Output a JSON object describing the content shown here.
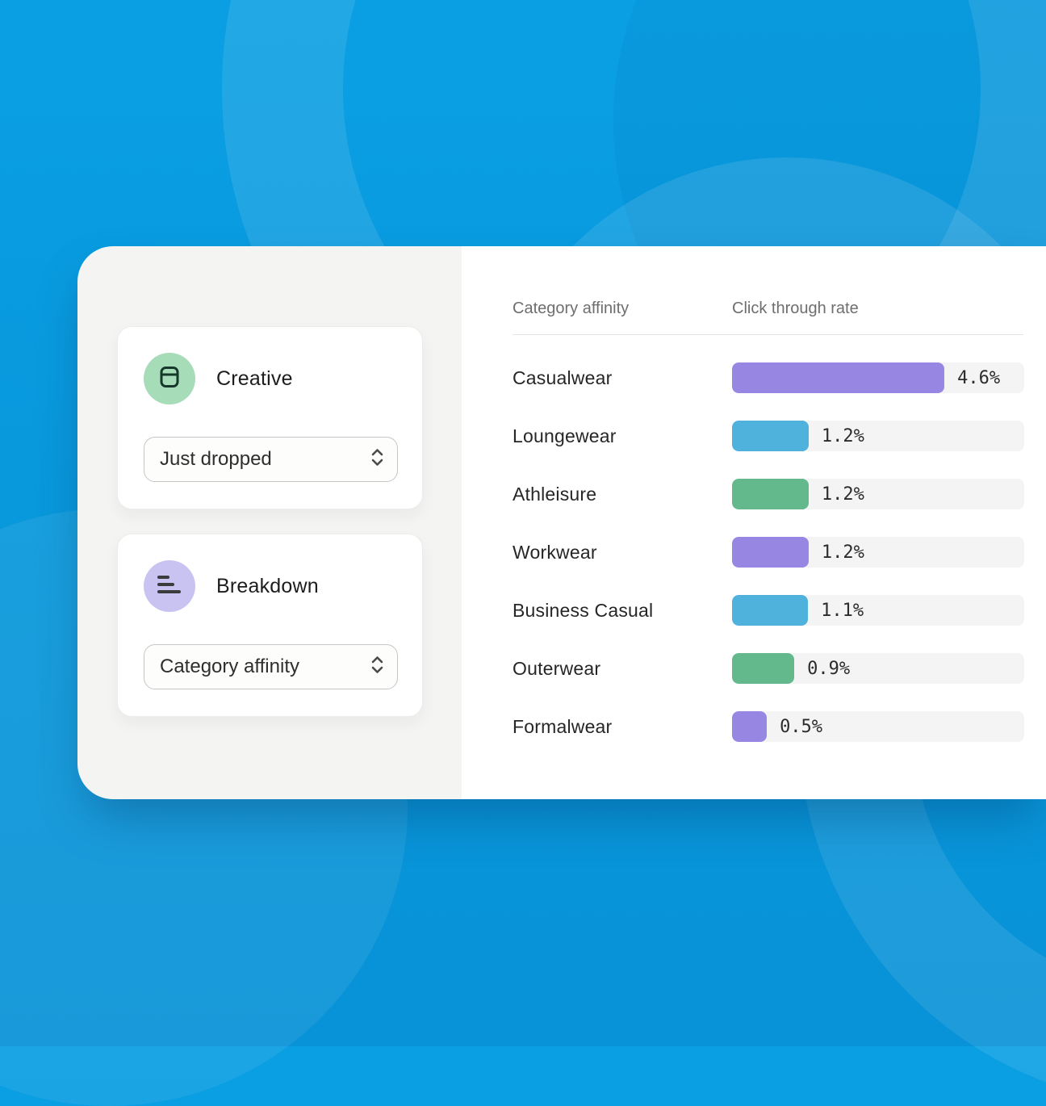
{
  "background": {
    "base_color": "#0898DC"
  },
  "panel": {
    "widgets": [
      {
        "title": "Creative",
        "icon": "layout-card-icon",
        "icon_bg": "#A7DCB8",
        "icon_color": "#16382B",
        "dropdown_value": "Just dropped"
      },
      {
        "title": "Breakdown",
        "icon": "bars-icon",
        "icon_bg": "#C9C3F1",
        "icon_color": "#3B3B3B",
        "dropdown_value": "Category affinity"
      }
    ]
  },
  "chart_data": {
    "type": "bar",
    "orientation": "horizontal",
    "title": "",
    "column_headers": [
      "Category affinity",
      "Click through rate"
    ],
    "categories": [
      "Casualwear",
      "Loungewear",
      "Athleisure",
      "Workwear",
      "Business Casual",
      "Outerwear",
      "Formalwear"
    ],
    "values": [
      4.6,
      1.2,
      1.2,
      1.2,
      1.1,
      0.9,
      0.5
    ],
    "value_labels": [
      "4.6%",
      "1.2%",
      "1.2%",
      "1.2%",
      "1.1%",
      "0.9%",
      "0.5%"
    ],
    "unit": "%",
    "bar_colors": [
      "#9787E2",
      "#4FB2DD",
      "#63B98C",
      "#9787E2",
      "#4FB2DD",
      "#63B98C",
      "#9787E2"
    ],
    "bar_widths_pct": [
      72.7,
      26.2,
      26.2,
      26.2,
      26.0,
      21.3,
      11.9
    ],
    "track_color": "#F4F4F4",
    "grid": false,
    "legend": false
  }
}
